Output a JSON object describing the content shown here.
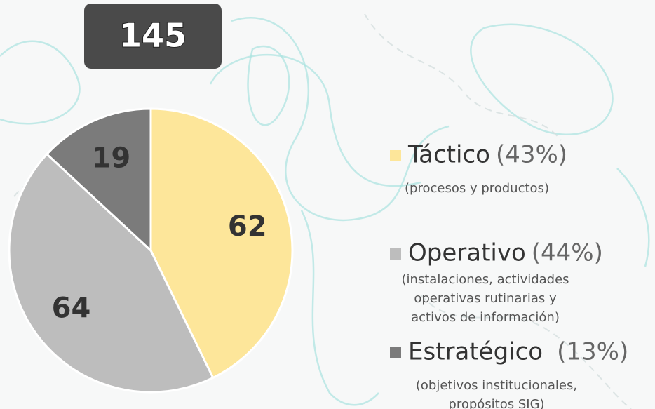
{
  "chart_data": {
    "type": "pie",
    "title": "145",
    "categories": [
      "Táctico",
      "Operativo",
      "Estratégico"
    ],
    "values": [
      62,
      64,
      19
    ],
    "colors": [
      "#fde69a",
      "#bdbdbd",
      "#7b7b7b"
    ],
    "percent_labels": [
      "(43%)",
      "(44%)",
      "(13%)"
    ],
    "descriptions": [
      [
        "(procesos y productos)"
      ],
      [
        "(instalaciones, actividades",
        "operativas rutinarias y",
        "activos de información)"
      ],
      [
        "(objetivos institucionales,",
        "propósitos SIG)"
      ]
    ]
  }
}
